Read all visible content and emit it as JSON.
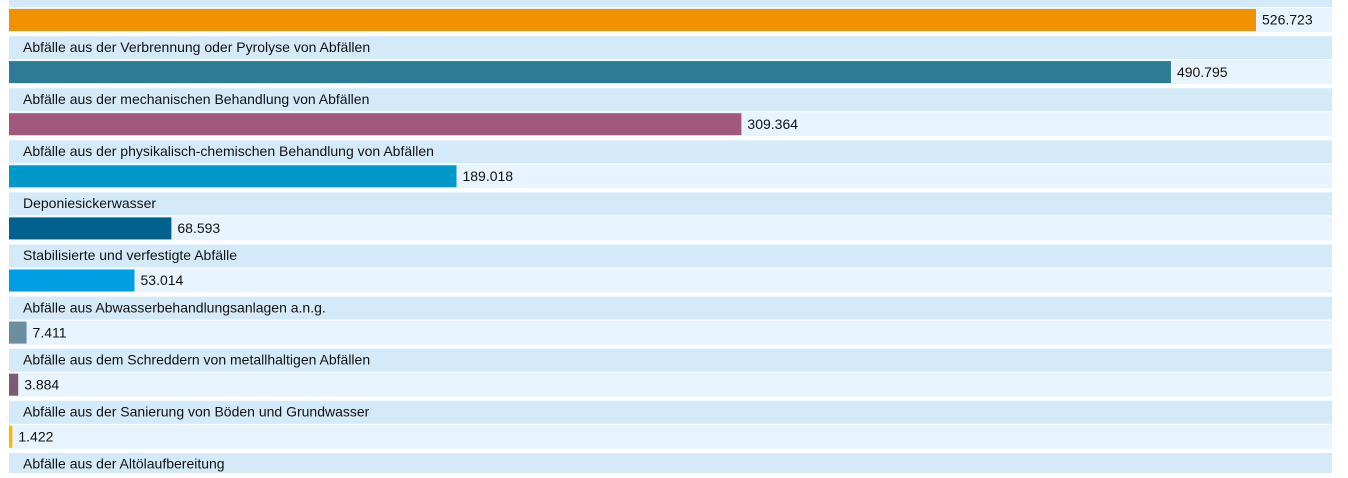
{
  "chart_data": {
    "type": "bar",
    "orientation": "horizontal",
    "categories": [
      null,
      "Abfälle aus der Verbrennung oder Pyrolyse von Abfällen",
      "Abfälle aus der mechanischen Behandlung von Abfällen",
      "Abfälle aus der physikalisch-chemischen Behandlung von Abfällen",
      "Deponiesickerwasser",
      "Stabilisierte und verfestigte Abfälle",
      "Abfälle aus Abwasserbehandlungsanlagen a.n.g.",
      "Abfälle aus dem Schreddern von metallhaltigen Abfällen",
      "Abfälle aus der Sanierung von Böden und Grundwasser",
      "Abfälle aus der Altölaufbereitung"
    ],
    "values": [
      526723,
      490795,
      309364,
      189018,
      68593,
      53014,
      7411,
      3884,
      1422,
      null
    ],
    "value_labels": [
      "526.723",
      "490.795",
      "309.364",
      "189.018",
      "68.593",
      "53.014",
      "7.411",
      "3.884",
      "1.422",
      null
    ],
    "colors": [
      "#f39200",
      "#2e7b96",
      "#a0597a",
      "#0098c8",
      "#00618e",
      "#009fe3",
      "#6b8ea0",
      "#7b5a73",
      "#f9b900"
    ]
  }
}
